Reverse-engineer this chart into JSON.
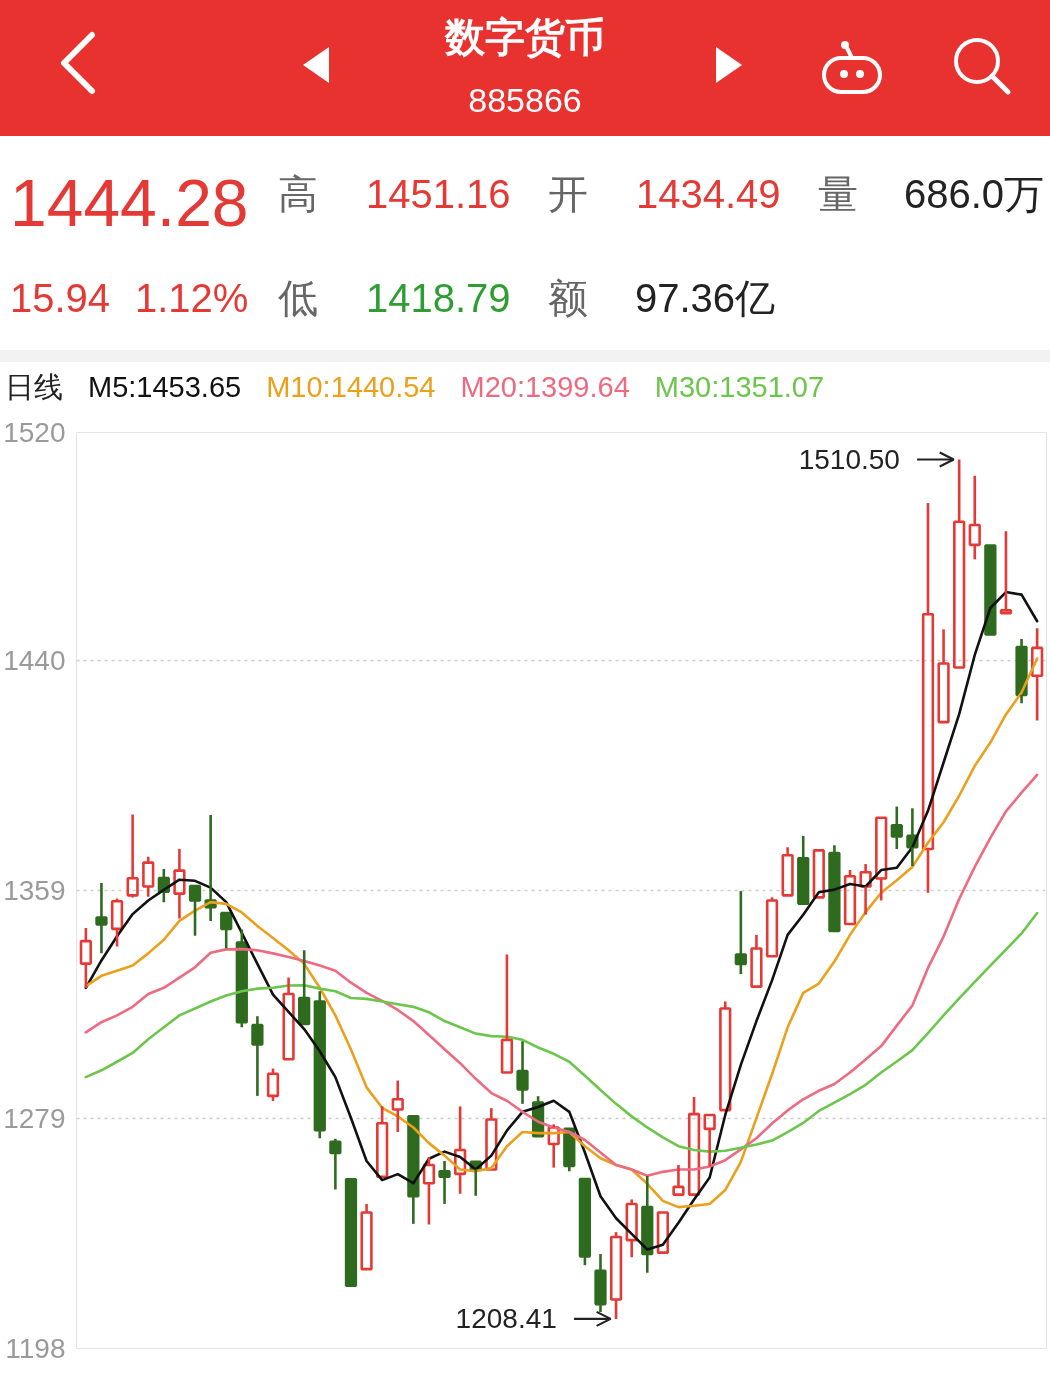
{
  "chart_data": {
    "type": "candlestick",
    "title": "数字货币",
    "subtitle": "885866",
    "annotations": [
      "1444.28",
      "高",
      "1451.16",
      "开",
      "1434.49",
      "量",
      "686.0万",
      "15.94",
      "1.12%",
      "低",
      "1418.79",
      "额",
      "97.36亿",
      "1510.50",
      "1208.41"
    ],
    "legend_title": "日线",
    "legend": "top left",
    "grid": "y",
    "tick_labels": "y",
    "ylim": [
      1198,
      1520
    ],
    "yticks": [
      1198,
      1279,
      1359,
      1440,
      1520
    ],
    "categories": [
      null,
      null,
      null,
      null,
      null,
      null,
      null,
      null,
      null,
      null,
      null,
      null,
      null,
      null,
      null,
      null,
      null,
      null,
      null,
      null,
      null,
      null,
      null,
      null,
      null,
      null,
      null,
      null,
      null,
      null,
      null,
      null,
      null,
      null,
      null,
      null,
      null,
      null,
      null,
      null,
      null,
      null,
      null,
      null,
      null,
      null,
      null,
      null,
      null,
      null,
      null,
      null,
      null,
      null,
      null,
      null,
      null,
      null,
      null,
      null,
      null,
      null
    ],
    "ohlc": [
      [
        1333.3,
        1345.8,
        1324.7,
        1341.2
      ],
      [
        1349.5,
        1361.6,
        1336.9,
        1347.1
      ],
      [
        1345.5,
        1356.2,
        1339.3,
        1355.2
      ],
      [
        1357.3,
        1385.7,
        1356.5,
        1363.3
      ],
      [
        1360.4,
        1370.9,
        1356.8,
        1368.8
      ],
      [
        1363.4,
        1366.6,
        1354.9,
        1358.6
      ],
      [
        1357.9,
        1373.6,
        1349.2,
        1366.0
      ],
      [
        1360.6,
        1360.6,
        1343.1,
        1355.5
      ],
      [
        1355.5,
        1385.5,
        1348.3,
        1353.1
      ],
      [
        1351.1,
        1351.1,
        1338.7,
        1345.5
      ],
      [
        1340.7,
        1345.3,
        1310.9,
        1312.7
      ],
      [
        1311.7,
        1314.8,
        1286.8,
        1304.9
      ],
      [
        1286.8,
        1296.4,
        1285.0,
        1294.6
      ],
      [
        1299.7,
        1328.4,
        1299.7,
        1322.6
      ],
      [
        1321.2,
        1338.0,
        1312.1,
        1312.1
      ],
      [
        1320.0,
        1323.6,
        1271.9,
        1274.7
      ],
      [
        1270.7,
        1271.7,
        1253.9,
        1266.7
      ],
      [
        1257.5,
        1257.5,
        1220.1,
        1220.1
      ],
      [
        1225.9,
        1248.8,
        1225.9,
        1245.8
      ],
      [
        1258.4,
        1283.2,
        1258.4,
        1277.2
      ],
      [
        1282.0,
        1292.2,
        1274.1,
        1285.6
      ],
      [
        1279.6,
        1279.6,
        1241.8,
        1251.5
      ],
      [
        1256.1,
        1265.3,
        1241.6,
        1262.5
      ],
      [
        1260.3,
        1263.9,
        1248.8,
        1258.4
      ],
      [
        1259.4,
        1283.1,
        1252.4,
        1267.8
      ],
      [
        1263.6,
        1263.6,
        1251.7,
        1260.9
      ],
      [
        1260.9,
        1282.5,
        1260.9,
        1278.5
      ],
      [
        1295.0,
        1336.5,
        1295.0,
        1306.5
      ],
      [
        1295.5,
        1306.0,
        1284.0,
        1289.1
      ],
      [
        1284.5,
        1286.7,
        1272.6,
        1272.6
      ],
      [
        1269.9,
        1276.8,
        1261.6,
        1275.7
      ],
      [
        1275.2,
        1275.2,
        1260.3,
        1262.2
      ],
      [
        1257.6,
        1257.6,
        1227.3,
        1230.4
      ],
      [
        1225.3,
        1231.2,
        1210.8,
        1213.6
      ],
      [
        1215.2,
        1238.9,
        1208.41,
        1237.2
      ],
      [
        1236.1,
        1250.4,
        1230.1,
        1248.8
      ],
      [
        1247.7,
        1258.7,
        1224.6,
        1231.2
      ],
      [
        1231.7,
        1245.8,
        1231.7,
        1245.8
      ],
      [
        1252.1,
        1262.5,
        1252.1,
        1254.8
      ],
      [
        1252.1,
        1286.4,
        1252.1,
        1280.4
      ],
      [
        1275.2,
        1280.1,
        1262.0,
        1280.1
      ],
      [
        1281.8,
        1320.0,
        1281.8,
        1317.5
      ],
      [
        1336.5,
        1358.8,
        1329.6,
        1333.2
      ],
      [
        1325.2,
        1343.4,
        1325.2,
        1338.6
      ],
      [
        1335.9,
        1356.6,
        1335.9,
        1355.5
      ],
      [
        1357.3,
        1374.2,
        1357.3,
        1371.4
      ],
      [
        1370.3,
        1378.2,
        1354.4,
        1354.4
      ],
      [
        1356.6,
        1373.1,
        1356.6,
        1373.1
      ],
      [
        1372.2,
        1374.9,
        1344.8,
        1344.8
      ],
      [
        1347.2,
        1366.2,
        1347.2,
        1364.0
      ],
      [
        1360.4,
        1368.3,
        1350.5,
        1365.4
      ],
      [
        1363.2,
        1384.6,
        1355.5,
        1384.6
      ],
      [
        1381.9,
        1388.5,
        1373.6,
        1378.0
      ],
      [
        1378.2,
        1387.9,
        1367.6,
        1374.2
      ],
      [
        1373.6,
        1495.2,
        1358.2,
        1456.1
      ],
      [
        1418.2,
        1450.8,
        1418.2,
        1438.8
      ],
      [
        1437.4,
        1510.5,
        1437.4,
        1488.6
      ],
      [
        1480.5,
        1504.8,
        1475.4,
        1487.5
      ],
      [
        1480.3,
        1480.3,
        1449.0,
        1449.0
      ],
      [
        1456.5,
        1485.3,
        1456.5,
        1457.5
      ],
      [
        1444.6,
        1447.4,
        1424.8,
        1427.7
      ],
      [
        1434.49,
        1451.16,
        1418.79,
        1444.28
      ]
    ],
    "colors": [
      "#e53935",
      "#2e6b1f",
      "#e53935",
      "#e53935",
      "#e53935",
      "#2e6b1f",
      "#e53935",
      "#2e6b1f",
      "#2e6b1f",
      "#2e6b1f",
      "#2e6b1f",
      "#2e6b1f",
      "#e53935",
      "#e53935",
      "#2e6b1f",
      "#2e6b1f",
      "#2e6b1f",
      "#2e6b1f",
      "#e53935",
      "#e53935",
      "#e53935",
      "#2e6b1f",
      "#e53935",
      "#2e6b1f",
      "#e53935",
      "#2e6b1f",
      "#e53935",
      "#e53935",
      "#2e6b1f",
      "#2e6b1f",
      "#e53935",
      "#2e6b1f",
      "#2e6b1f",
      "#2e6b1f",
      "#e53935",
      "#e53935",
      "#2e6b1f",
      "#e53935",
      "#e53935",
      "#e53935",
      "#e53935",
      "#e53935",
      "#2e6b1f",
      "#e53935",
      "#e53935",
      "#e53935",
      "#2e6b1f",
      "#e53935",
      "#2e6b1f",
      "#e53935",
      "#e53935",
      "#e53935",
      "#2e6b1f",
      "#2e6b1f",
      "#e53935",
      "#e53935",
      "#e53935",
      "#e53935",
      "#2e6b1f",
      "#e53935",
      "#2e6b1f",
      "#e53935"
    ],
    "series": [
      {
        "name": "M5:1453.65",
        "type": "line",
        "color": "#111111",
        "values": [
          1324.8,
          1334.4,
          1342.9,
          1350.7,
          1355.5,
          1359.2,
          1362.8,
          1362.4,
          1360.0,
          1354.9,
          1344.1,
          1333.2,
          1322.4,
          1316.3,
          1310.3,
          1302.5,
          1293.4,
          1279.0,
          1263.9,
          1257.2,
          1259.3,
          1256.1,
          1264.7,
          1267.2,
          1265.3,
          1260.9,
          1265.8,
          1274.6,
          1281.2,
          1282.9,
          1285.1,
          1281.2,
          1266.9,
          1251.5,
          1243.8,
          1238.3,
          1232.8,
          1234.5,
          1242.2,
          1250.4,
          1258.1,
          1280.1,
          1297.7,
          1313.1,
          1327.4,
          1343.4,
          1350.5,
          1358.4,
          1359.3,
          1361.3,
          1360.4,
          1366.2,
          1367.0,
          1374.2,
          1387.0,
          1404.0,
          1421.0,
          1441.8,
          1458.3,
          1463.9,
          1463.0,
          1453.65
        ]
      },
      {
        "name": "M10:1440.54",
        "type": "line",
        "color": "#eba01c",
        "values": [
          1325.4,
          1329.0,
          1330.8,
          1332.6,
          1336.9,
          1341.7,
          1348.3,
          1351.9,
          1354.9,
          1354.3,
          1351.3,
          1346.5,
          1342.3,
          1338.0,
          1333.2,
          1324.8,
          1315.1,
          1303.1,
          1289.8,
          1282.6,
          1279.6,
          1275.7,
          1270.2,
          1265.8,
          1260.9,
          1260.3,
          1261.4,
          1269.1,
          1274.1,
          1273.7,
          1273.7,
          1274.1,
          1269.1,
          1264.9,
          1262.5,
          1260.9,
          1255.9,
          1249.9,
          1247.7,
          1248.2,
          1248.8,
          1253.7,
          1263.6,
          1279.0,
          1294.4,
          1310.9,
          1323.0,
          1326.3,
          1334.0,
          1343.4,
          1351.4,
          1358.2,
          1362.6,
          1367.3,
          1375.8,
          1383.0,
          1392.3,
          1402.8,
          1411.0,
          1420.9,
          1428.6,
          1440.54
        ]
      },
      {
        "name": "M20:1399.64",
        "type": "line",
        "color": "#ee6a80",
        "values": [
          1309.1,
          1312.7,
          1315.1,
          1318.1,
          1322.6,
          1324.8,
          1328.4,
          1332.0,
          1337.1,
          1338.3,
          1338.4,
          1338.0,
          1336.9,
          1335.6,
          1334.2,
          1332.6,
          1330.8,
          1326.6,
          1323.0,
          1320.2,
          1317.0,
          1313.1,
          1308.2,
          1303.2,
          1298.3,
          1292.8,
          1287.8,
          1285.1,
          1281.2,
          1277.7,
          1275.7,
          1274.1,
          1271.3,
          1266.9,
          1262.5,
          1260.9,
          1258.7,
          1260.1,
          1260.9,
          1260.9,
          1262.0,
          1264.2,
          1268.0,
          1271.9,
          1277.1,
          1281.7,
          1285.6,
          1288.6,
          1291.0,
          1295.0,
          1299.6,
          1304.3,
          1311.5,
          1318.6,
          1331.8,
          1342.8,
          1356.0,
          1367.3,
          1377.5,
          1386.8,
          1393.4,
          1399.64
        ]
      },
      {
        "name": "M30:1351.07",
        "type": "line",
        "color": "#6cc54c",
        "values": [
          1293.4,
          1295.8,
          1298.8,
          1301.9,
          1306.7,
          1310.9,
          1315.1,
          1317.5,
          1320.0,
          1322.1,
          1323.6,
          1324.5,
          1324.8,
          1325.6,
          1325.7,
          1324.5,
          1323.6,
          1321.2,
          1320.9,
          1320.0,
          1319.0,
          1318.1,
          1316.2,
          1313.1,
          1310.9,
          1308.7,
          1307.8,
          1307.6,
          1306.5,
          1303.8,
          1301.6,
          1298.8,
          1293.9,
          1288.9,
          1284.0,
          1279.6,
          1275.7,
          1272.2,
          1269.1,
          1267.8,
          1267.2,
          1267.5,
          1268.6,
          1269.7,
          1271.1,
          1274.1,
          1277.3,
          1281.5,
          1284.4,
          1287.4,
          1290.7,
          1295.0,
          1298.9,
          1302.9,
          1308.9,
          1315.1,
          1321.1,
          1326.9,
          1332.6,
          1338.2,
          1343.9,
          1351.07
        ]
      }
    ]
  }
}
